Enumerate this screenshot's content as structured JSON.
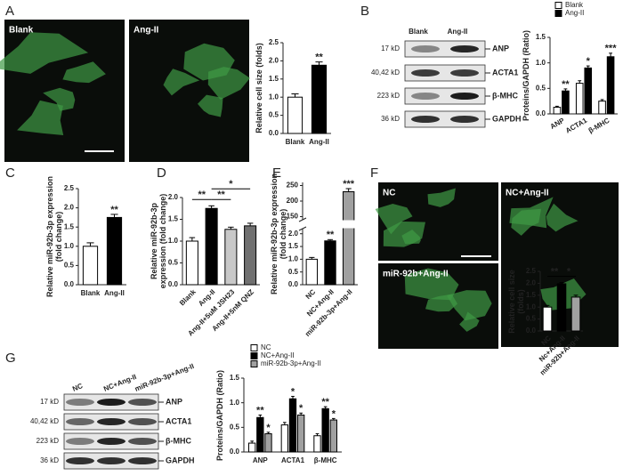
{
  "figure": {
    "panel_letters": [
      "A",
      "B",
      "C",
      "D",
      "E",
      "F",
      "G"
    ],
    "images": [
      {
        "label": "Blank"
      },
      {
        "label": "Ang-II"
      },
      {
        "label": "NC"
      },
      {
        "label": "NC+Ang-II"
      },
      {
        "label": "miR-92b+Ang-II"
      }
    ],
    "blots": [
      {
        "columns": [
          "Blank",
          "Ang-II"
        ],
        "rows": [
          {
            "size": "17 kD",
            "protein": "ANP"
          },
          {
            "size": "40,42 kD",
            "protein": "ACTA1"
          },
          {
            "size": "223 kD",
            "protein": "β-MHC"
          },
          {
            "size": "36 kD",
            "protein": "GAPDH"
          }
        ]
      },
      {
        "columns": [
          "NC",
          "NC+Ang-II",
          "miR-92b-3p+Ang-II"
        ],
        "rows": [
          {
            "size": "17 kD",
            "protein": "ANP"
          },
          {
            "size": "40,42 kD",
            "protein": "ACTA1"
          },
          {
            "size": "223 kD",
            "protein": "β-MHC"
          },
          {
            "size": "36 kD",
            "protein": "GAPDH"
          }
        ]
      }
    ]
  },
  "chart_data": [
    {
      "type": "bar",
      "ylabel": "Relative cell size (folds)",
      "categories": [
        "Blank",
        "Ang-II"
      ],
      "values": [
        1.0,
        1.88
      ],
      "errors": [
        0.09,
        0.09
      ],
      "colors": [
        "#ffffff",
        "#000000"
      ],
      "significance": [
        null,
        "**"
      ],
      "ylim": [
        0,
        2.5
      ],
      "yticks": [
        {
          "value": 0,
          "label": "0.0"
        },
        0.5,
        {
          "value": 1,
          "label": "1.0"
        },
        1.5,
        {
          "value": 2,
          "label": "2.0"
        },
        2.5
      ]
    },
    {
      "type": "grouped_bar",
      "ylabel": "Proteins/GAPDH (Ratio)",
      "categories": [
        "ANP",
        "ACTA1",
        "β-MHC"
      ],
      "series": [
        {
          "name": "Blank",
          "color": "#ffffff",
          "values": [
            0.13,
            0.6,
            0.25
          ],
          "errors": [
            0.02,
            0.05,
            0.03
          ]
        },
        {
          "name": "Ang-II",
          "color": "#000000",
          "values": [
            0.45,
            0.9,
            1.12
          ],
          "errors": [
            0.04,
            0.04,
            0.07
          ],
          "significance": [
            "**",
            "*",
            "***"
          ]
        }
      ],
      "ylim": [
        0,
        1.5
      ],
      "yticks": [
        {
          "value": 0,
          "label": "0.0"
        },
        0.5,
        {
          "value": 1,
          "label": "1.0"
        },
        1.5
      ]
    },
    {
      "type": "bar",
      "ylabel": "Relative miR-92b-3p expression (fold change)",
      "categories": [
        "Blank",
        "Ang-II"
      ],
      "values": [
        1.0,
        1.75
      ],
      "errors": [
        0.09,
        0.08
      ],
      "colors": [
        "#ffffff",
        "#000000"
      ],
      "significance": [
        null,
        "**"
      ],
      "ylim": [
        0,
        2.5
      ],
      "yticks": [
        {
          "value": 0,
          "label": "0.0"
        },
        0.5,
        {
          "value": 1,
          "label": "1.0"
        },
        1.5,
        {
          "value": 2,
          "label": "2.0"
        },
        2.5
      ]
    },
    {
      "type": "bar",
      "ylabel": "Relative miR-92b-3p expression (fold change)",
      "categories": [
        "Blank",
        "Ang-II",
        "Ang-II+5uM JSH23",
        "Ang-II+5nM QNZ"
      ],
      "values": [
        1.0,
        1.75,
        1.27,
        1.35
      ],
      "errors": [
        0.08,
        0.06,
        0.05,
        0.06
      ],
      "colors": [
        "#ffffff",
        "#000000",
        "#c8c8c8",
        "#707070"
      ],
      "brackets": [
        {
          "label": "**",
          "from": "Blank",
          "to": "Ang-II"
        },
        {
          "label": "**",
          "from": "Ang-II",
          "to": "Ang-II+5uM JSH23"
        },
        {
          "label": "*",
          "from": "Ang-II",
          "to": "Ang-II+5nM QNZ"
        }
      ],
      "ylim": [
        0,
        2
      ],
      "yticks": [
        {
          "value": 0,
          "label": "0.0"
        },
        0.5,
        {
          "value": 1,
          "label": "1.0"
        },
        1.5,
        {
          "value": 2,
          "label": "2.0"
        }
      ]
    },
    {
      "type": "bar",
      "ylabel": "Relative miR-92b-3p expression (fold change)",
      "categories": [
        "NC",
        "NC+Ang-II",
        "miR-92b-3p+Ang-II"
      ],
      "values": [
        1.0,
        1.72,
        230
      ],
      "errors": [
        0.07,
        0.05,
        10
      ],
      "colors": [
        "#ffffff",
        "#000000",
        "#a0a0a0"
      ],
      "significance": [
        null,
        "**",
        "***"
      ],
      "ylim": [
        0,
        260
      ],
      "axis_break": [
        2.2,
        140
      ],
      "yticks": [
        {
          "value": 0,
          "label": "0.0"
        },
        0.5,
        {
          "value": 1,
          "label": "1.0"
        },
        1.5,
        {
          "value": 2,
          "label": "2.0"
        },
        150,
        200,
        250
      ]
    },
    {
      "type": "bar",
      "ylabel": "Relative cell size (folds)",
      "categories": [
        "NC",
        "Nc+Ang-II",
        "miR-92b+Ang-II"
      ],
      "values": [
        1.0,
        1.98,
        1.42
      ],
      "errors": [
        0.07,
        0.05,
        0.08
      ],
      "colors": [
        "#ffffff",
        "#000000",
        "#a0a0a0"
      ],
      "brackets": [
        {
          "label": "**",
          "from": "NC",
          "to": "Nc+Ang-II"
        },
        {
          "label": "*",
          "from": "Nc+Ang-II",
          "to": "miR-92b+Ang-II"
        }
      ],
      "ylim": [
        0,
        2.5
      ],
      "yticks": [
        {
          "value": 0,
          "label": "0.0"
        },
        0.5,
        {
          "value": 1,
          "label": "1.0"
        },
        1.5,
        {
          "value": 2,
          "label": "2.0"
        },
        2.5
      ]
    },
    {
      "type": "grouped_bar",
      "ylabel": "Proteins/GAPDH (Ratio)",
      "categories": [
        "ANP",
        "ACTA1",
        "β-MHC"
      ],
      "series": [
        {
          "name": "NC",
          "color": "#ffffff",
          "values": [
            0.18,
            0.55,
            0.33
          ],
          "errors": [
            0.04,
            0.05,
            0.04
          ]
        },
        {
          "name": "NC+Ang-II",
          "color": "#000000",
          "values": [
            0.7,
            1.08,
            0.88
          ],
          "errors": [
            0.05,
            0.05,
            0.04
          ],
          "significance": [
            "**",
            "*",
            "**"
          ]
        },
        {
          "name": "miR-92b-3p+Ang-II",
          "color": "#a0a0a0",
          "values": [
            0.37,
            0.75,
            0.65
          ],
          "errors": [
            0.03,
            0.04,
            0.03
          ],
          "significance": [
            "*",
            "*",
            "*"
          ]
        }
      ],
      "ylim": [
        0,
        1.5
      ],
      "yticks": [
        {
          "value": 0,
          "label": "0.0"
        },
        0.5,
        {
          "value": 1,
          "label": "1.0"
        },
        1.5
      ]
    }
  ]
}
